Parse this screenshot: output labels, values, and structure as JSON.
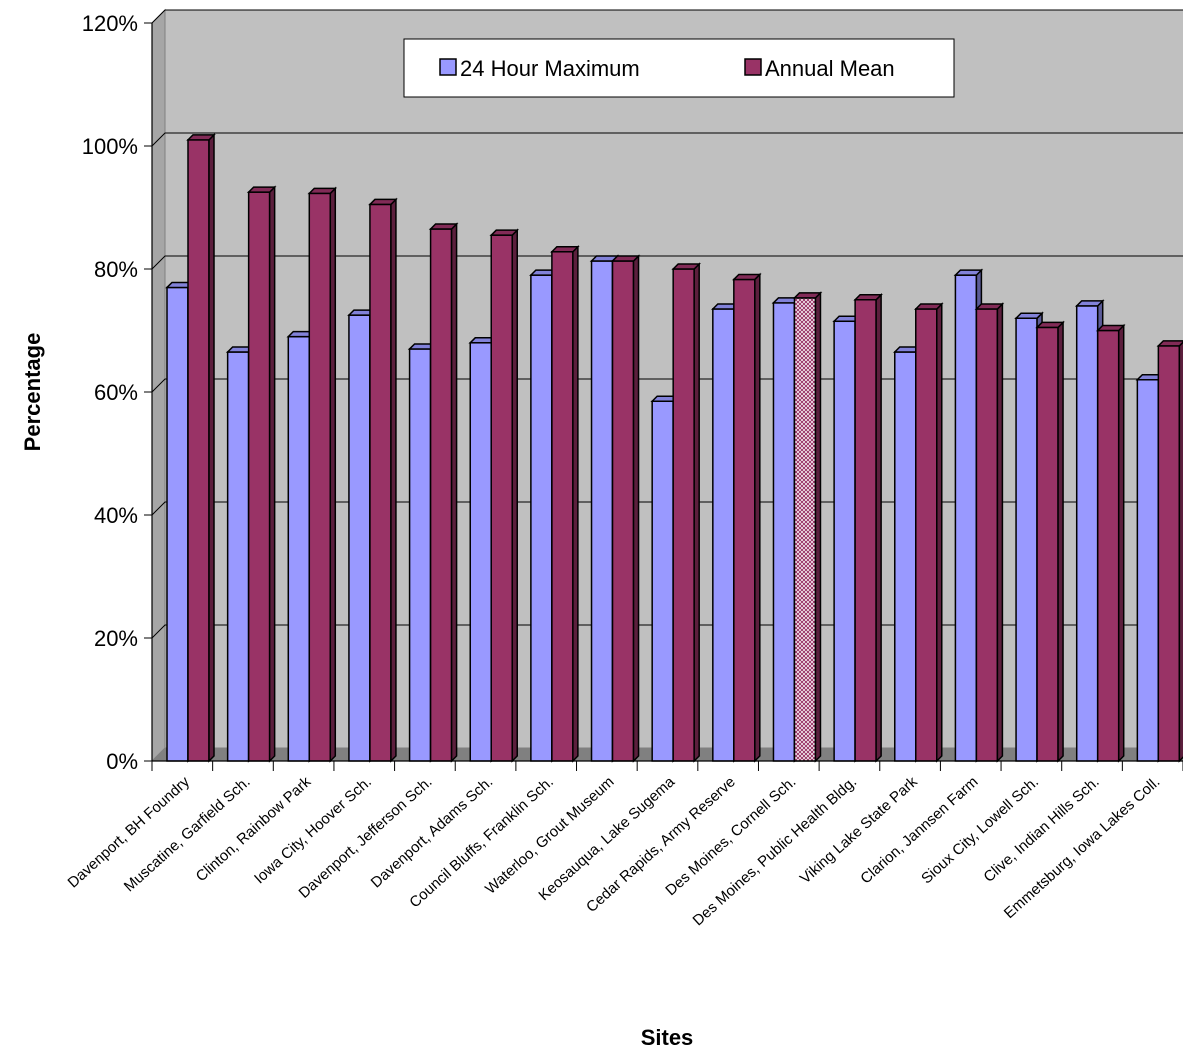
{
  "chart_data": {
    "type": "bar",
    "title": "",
    "xlabel": "Sites",
    "ylabel": "Percentage",
    "ylim": [
      0,
      120
    ],
    "yticks": [
      "0%",
      "20%",
      "40%",
      "60%",
      "80%",
      "100%",
      "120%"
    ],
    "grid": true,
    "legend_position": "top-center",
    "categories": [
      "Davenport, BH Foundry",
      "Muscatine, Garfield Sch.",
      "Clinton, Rainbow Park",
      "Iowa City, Hoover Sch.",
      "Davenport, Jefferson Sch.",
      "Davenport, Adams Sch.",
      "Council Bluffs, Franklin Sch.",
      "Waterloo, Grout Museum",
      "Keosauqua, Lake Sugema",
      "Cedar Rapids, Army Reserve",
      "Des Moines, Cornell Sch.",
      "Des Moines, Public Health Bldg.",
      "Viking Lake State Park",
      "Clarion, Jannsen Farm",
      "Sioux City, Lowell Sch.",
      "Clive, Indian Hills Sch.",
      "Emmetsburg, Iowa Lakes Coll."
    ],
    "series": [
      {
        "name": "24 Hour Maximum",
        "color": "#9999ff",
        "values": [
          77,
          66.5,
          69,
          72.5,
          67,
          68,
          79,
          81.3,
          58.5,
          73.5,
          74.5,
          71.5,
          66.5,
          79,
          72,
          74,
          62
        ]
      },
      {
        "name": "Annual Mean",
        "color": "#993366",
        "values": [
          101,
          92.5,
          92.3,
          90.5,
          86.5,
          85.5,
          82.8,
          81.3,
          80,
          78.3,
          75.3,
          75,
          73.5,
          73.5,
          70.5,
          70,
          67.5
        ],
        "patterned_index": 10
      }
    ]
  }
}
